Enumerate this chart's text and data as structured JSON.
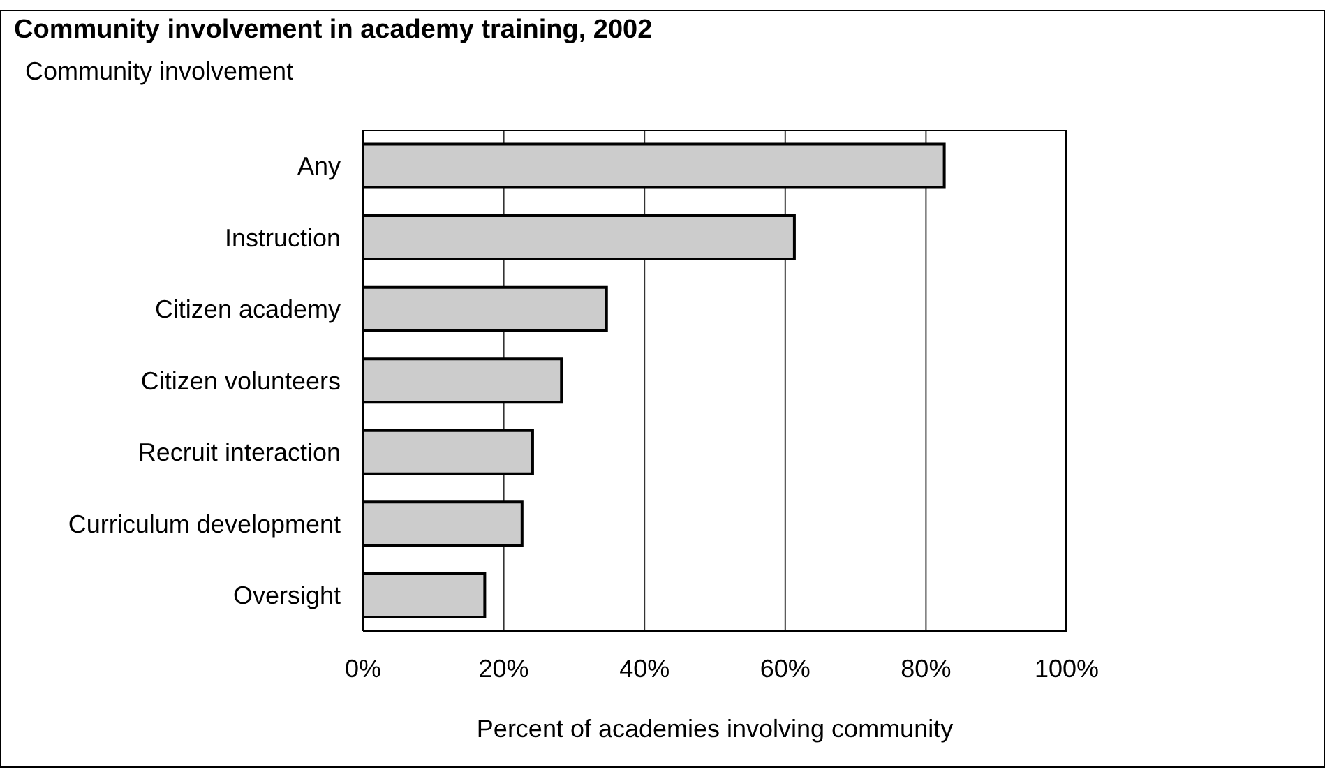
{
  "chart_data": {
    "type": "bar",
    "orientation": "horizontal",
    "title": "Community involvement in academy training, 2002",
    "ylabel": "Community involvement",
    "xlabel": "Percent of academies involving community",
    "categories": [
      "Any",
      "Instruction",
      "Citizen academy",
      "Citizen volunteers",
      "Recruit interaction",
      "Curriculum development",
      "Oversight"
    ],
    "values": [
      82.6,
      61.3,
      34.6,
      28.2,
      24.1,
      22.6,
      17.3
    ],
    "color": "#cccccc",
    "xlim": [
      0,
      100
    ],
    "xticks": [
      {
        "value": 0,
        "label": "0%"
      },
      {
        "value": 20,
        "label": "20%"
      },
      {
        "value": 40,
        "label": "40%"
      },
      {
        "value": 60,
        "label": "60%"
      },
      {
        "value": 80,
        "label": "80%"
      },
      {
        "value": 100,
        "label": "100%"
      }
    ],
    "grid": "x"
  }
}
